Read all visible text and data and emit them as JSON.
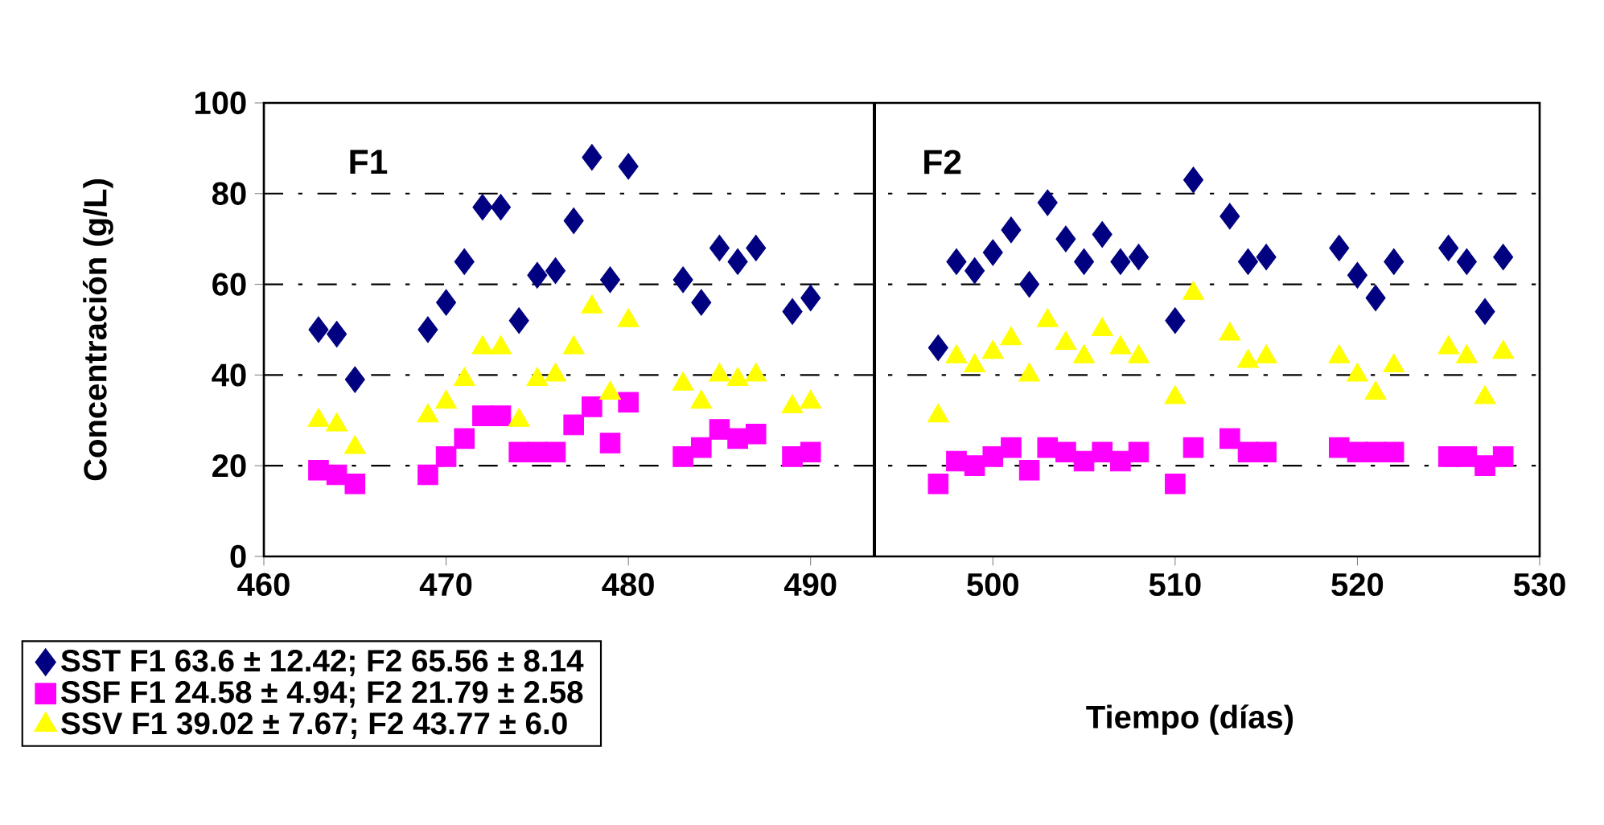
{
  "chart_data": {
    "type": "scatter",
    "xlabel": "Tiempo (días)",
    "ylabel": "Concentración (g/L)",
    "xlim": [
      460,
      530
    ],
    "xticks": [
      460,
      470,
      480,
      490,
      500,
      510,
      520,
      530
    ],
    "ylim": [
      0,
      100
    ],
    "yticks": [
      0,
      20,
      40,
      60,
      80,
      100
    ],
    "grid": "y",
    "legend": "bottom left",
    "x": [
      463,
      464,
      465,
      469,
      470,
      471,
      472,
      473,
      474,
      475,
      476,
      477,
      478,
      479,
      480,
      483,
      484,
      485,
      486,
      487,
      489,
      490,
      497,
      498,
      499,
      500,
      501,
      502,
      503,
      504,
      505,
      506,
      507,
      508,
      510,
      511,
      513,
      514,
      515,
      519,
      520,
      521,
      522,
      525,
      526,
      527,
      528
    ],
    "series": [
      {
        "name": "SST F1 63.6 ± 12.42; F2 65.56 ± 8.14",
        "color": "#000080",
        "marker": "diamond",
        "values": [
          50,
          49,
          39,
          50,
          56,
          65,
          77,
          77,
          52,
          62,
          63,
          74,
          88,
          61,
          86,
          61,
          56,
          68,
          65,
          68,
          54,
          57,
          46,
          65,
          63,
          67,
          72,
          60,
          78,
          70,
          65,
          71,
          65,
          66,
          52,
          83,
          75,
          65,
          66,
          68,
          62,
          57,
          65,
          68,
          65,
          54,
          66
        ]
      },
      {
        "name": "SSF F1 24.58 ± 4.94; F2 21.79 ± 2.58",
        "color": "#ff00ff",
        "marker": "square",
        "values": [
          19,
          18,
          16,
          18,
          22,
          26,
          31,
          31,
          23,
          23,
          23,
          29,
          33,
          25,
          34,
          22,
          24,
          28,
          26,
          27,
          22,
          23,
          16,
          21,
          20,
          22,
          24,
          19,
          24,
          23,
          21,
          23,
          21,
          23,
          16,
          24,
          26,
          23,
          23,
          24,
          23,
          23,
          23,
          22,
          22,
          20,
          22
        ]
      },
      {
        "name": "SSV F1 39.02 ± 7.67; F2 43.77 ± 6.0",
        "color": "#ffff00",
        "marker": "triangle",
        "values": [
          30,
          29,
          24,
          31,
          34,
          39,
          46,
          46,
          30,
          39,
          40,
          46,
          55,
          36,
          52,
          38,
          34,
          40,
          39,
          40,
          33,
          34,
          31,
          44,
          42,
          45,
          48,
          40,
          52,
          47,
          44,
          50,
          46,
          44,
          35,
          58,
          49,
          43,
          44,
          44,
          40,
          36,
          42,
          46,
          44,
          35,
          45
        ]
      }
    ],
    "ref_lines": [
      {
        "axis": "x",
        "value": 493.5,
        "color": "#000000"
      }
    ],
    "annotations": [
      "F1",
      "F2"
    ]
  }
}
